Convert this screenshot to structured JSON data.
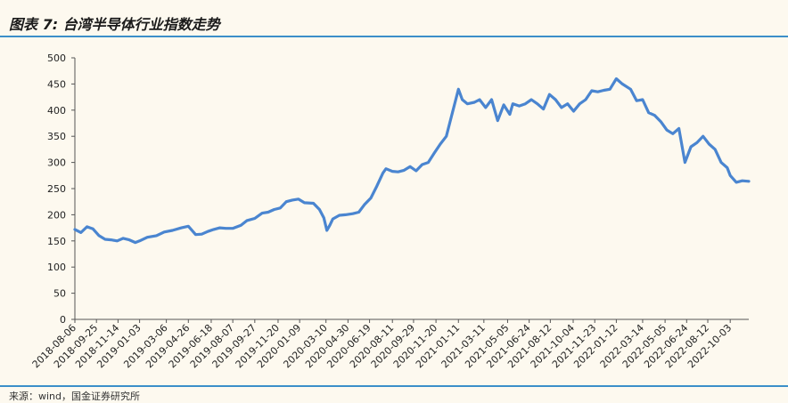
{
  "title": "图表 7: 台湾半导体行业指数走势",
  "source": "来源：wind，国金证券研究所",
  "colors": {
    "line": "#4a85d0",
    "rule": "#3b8fc9",
    "axis": "#555555",
    "background": "#fdf9ef"
  },
  "chart_data": {
    "type": "line",
    "title": "",
    "xlabel": "",
    "ylabel": "",
    "ylim": [
      0,
      500
    ],
    "yticks": [
      0,
      50,
      100,
      150,
      200,
      250,
      300,
      350,
      400,
      450,
      500
    ],
    "grid": false,
    "legend": "none",
    "x_start": "2018-08-06",
    "x_end": "2022-11-15",
    "x_tick_labels": [
      "2018-08-06",
      "2018-09-25",
      "2018-11-14",
      "2019-01-03",
      "2019-03-06",
      "2019-04-26",
      "2019-06-18",
      "2019-08-07",
      "2019-09-27",
      "2019-11-20",
      "2020-01-09",
      "2020-03-10",
      "2020-04-30",
      "2020-06-19",
      "2020-08-11",
      "2020-09-29",
      "2020-11-20",
      "2021-01-11",
      "2021-03-11",
      "2021-05-05",
      "2021-06-24",
      "2021-08-12",
      "2021-10-04",
      "2021-11-23",
      "2022-01-12",
      "2022-03-14",
      "2022-05-05",
      "2022-06-24",
      "2022-08-12",
      "2022-10-03"
    ],
    "series": [
      {
        "x": [
          "2018-08-06",
          "2018-08-20",
          "2018-09-03",
          "2018-09-17",
          "2018-10-01",
          "2018-10-15",
          "2018-10-29",
          "2018-11-12",
          "2018-11-26",
          "2018-12-10",
          "2018-12-24",
          "2019-01-03",
          "2019-01-21",
          "2019-02-11",
          "2019-03-01",
          "2019-03-20",
          "2019-04-10",
          "2019-04-26",
          "2019-05-13",
          "2019-05-27",
          "2019-06-10",
          "2019-06-24",
          "2019-07-08",
          "2019-07-22",
          "2019-08-07",
          "2019-08-26",
          "2019-09-09",
          "2019-09-27",
          "2019-10-14",
          "2019-10-28",
          "2019-11-11",
          "2019-11-25",
          "2019-12-09",
          "2019-12-23",
          "2020-01-06",
          "2020-01-20",
          "2020-02-10",
          "2020-02-24",
          "2020-03-05",
          "2020-03-12",
          "2020-03-19",
          "2020-03-26",
          "2020-04-10",
          "2020-04-24",
          "2020-05-11",
          "2020-05-25",
          "2020-06-08",
          "2020-06-22",
          "2020-07-06",
          "2020-07-20",
          "2020-07-27",
          "2020-08-11",
          "2020-08-24",
          "2020-09-07",
          "2020-09-21",
          "2020-10-05",
          "2020-10-19",
          "2020-11-02",
          "2020-11-16",
          "2020-11-30",
          "2020-12-14",
          "2020-12-28",
          "2021-01-11",
          "2021-01-20",
          "2021-02-01",
          "2021-02-17",
          "2021-03-01",
          "2021-03-15",
          "2021-03-29",
          "2021-04-12",
          "2021-04-26",
          "2021-05-10",
          "2021-05-17",
          "2021-06-01",
          "2021-06-15",
          "2021-06-29",
          "2021-07-13",
          "2021-07-27",
          "2021-08-10",
          "2021-08-24",
          "2021-09-07",
          "2021-09-21",
          "2021-10-05",
          "2021-10-19",
          "2021-11-02",
          "2021-11-16",
          "2021-11-30",
          "2021-12-14",
          "2021-12-28",
          "2022-01-12",
          "2022-01-26",
          "2022-02-14",
          "2022-02-28",
          "2022-03-14",
          "2022-03-28",
          "2022-04-11",
          "2022-04-25",
          "2022-05-09",
          "2022-05-23",
          "2022-06-06",
          "2022-06-20",
          "2022-07-04",
          "2022-07-18",
          "2022-08-01",
          "2022-08-15",
          "2022-08-29",
          "2022-09-12",
          "2022-09-26",
          "2022-10-03",
          "2022-10-17",
          "2022-10-31",
          "2022-11-15"
        ],
        "values": [
          172,
          166,
          177,
          173,
          160,
          153,
          152,
          150,
          155,
          152,
          147,
          150,
          157,
          160,
          167,
          170,
          175,
          178,
          162,
          163,
          168,
          172,
          175,
          174,
          174,
          180,
          189,
          193,
          203,
          205,
          210,
          213,
          225,
          228,
          230,
          223,
          222,
          210,
          194,
          170,
          180,
          192,
          199,
          200,
          202,
          205,
          220,
          232,
          255,
          280,
          288,
          283,
          282,
          285,
          292,
          284,
          296,
          300,
          318,
          335,
          350,
          395,
          440,
          420,
          412,
          415,
          420,
          405,
          420,
          380,
          410,
          392,
          412,
          408,
          412,
          420,
          412,
          402,
          430,
          420,
          405,
          412,
          398,
          412,
          420,
          437,
          435,
          438,
          440,
          460,
          450,
          440,
          418,
          420,
          395,
          390,
          378,
          362,
          355,
          365,
          300,
          330,
          338,
          350,
          335,
          325,
          300,
          290,
          275,
          262,
          265,
          264
        ]
      }
    ]
  }
}
